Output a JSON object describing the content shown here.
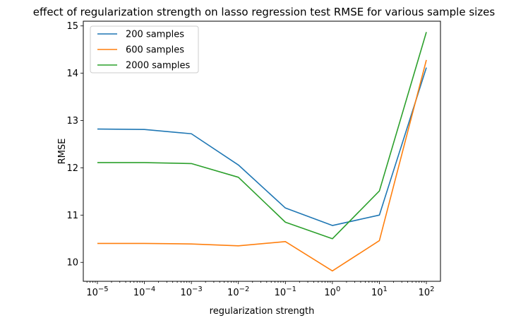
{
  "chart_data": {
    "type": "line",
    "title": "effect of regularization strength on lasso regression test RMSE for various sample sizes",
    "xlabel": "regularization strength",
    "ylabel": "RMSE",
    "xscale": "log",
    "x": [
      1e-05,
      0.0001,
      0.001,
      0.01,
      0.1,
      1,
      10,
      100
    ],
    "x_exponents": [
      -5,
      -4,
      -3,
      -2,
      -1,
      0,
      1,
      2
    ],
    "x_tick_base": "10",
    "x_tick_exponent_labels": [
      "−5",
      "−4",
      "−3",
      "−2",
      "−1",
      "0",
      "1",
      "2"
    ],
    "xlim_exponent": [
      -5.3,
      2.3
    ],
    "ylim": [
      9.6,
      15.1
    ],
    "yticks": [
      10,
      11,
      12,
      13,
      14,
      15
    ],
    "y_tick_labels": [
      "10",
      "11",
      "12",
      "13",
      "14",
      "15"
    ],
    "grid": false,
    "legend_position": "top-left",
    "series": [
      {
        "name": "200 samples",
        "color": "#1f77b4",
        "values": [
          12.82,
          12.81,
          12.72,
          12.06,
          11.15,
          10.78,
          11.0,
          14.12
        ]
      },
      {
        "name": "600 samples",
        "color": "#ff7f0e",
        "values": [
          10.4,
          10.4,
          10.39,
          10.35,
          10.44,
          9.82,
          10.46,
          14.28
        ]
      },
      {
        "name": "2000 samples",
        "color": "#2ca02c",
        "values": [
          12.11,
          12.11,
          12.09,
          11.8,
          10.85,
          10.5,
          11.51,
          14.87
        ]
      }
    ]
  }
}
